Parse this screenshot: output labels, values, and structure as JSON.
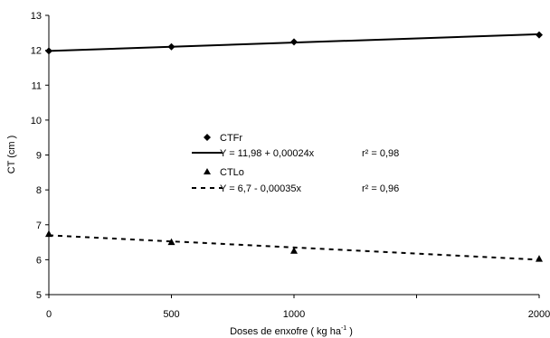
{
  "chart_data": {
    "type": "line",
    "title": "",
    "xlabel": "Doses de enxofre ( kg ha",
    "xlabel_sup": "-1",
    "xlabel_end": " )",
    "ylabel": "CT (cm )",
    "xlim": [
      0,
      2000
    ],
    "ylim": [
      5,
      13
    ],
    "x_ticks": [
      0,
      500,
      1000,
      2000
    ],
    "x_tick_labels": [
      "0",
      "500",
      "1000",
      "2000"
    ],
    "y_ticks": [
      5,
      6,
      7,
      8,
      9,
      10,
      11,
      12,
      13
    ],
    "y_tick_labels": [
      "5",
      "6",
      "7",
      "8",
      "9",
      "10",
      "11",
      "12",
      "13"
    ],
    "grid": false,
    "legend_position": "center-left",
    "series": [
      {
        "name": "CTFr",
        "marker": "diamond",
        "x": [
          0,
          500,
          1000,
          2000
        ],
        "y": [
          11.98,
          12.1,
          12.24,
          12.44
        ],
        "fit": {
          "label": "Y = 11,98 + 0,00024x",
          "r2_label": "r² = 0,98",
          "intercept": 11.98,
          "slope": 0.00024,
          "line_style": "solid"
        }
      },
      {
        "name": "CTLo",
        "marker": "triangle",
        "x": [
          0,
          500,
          1000,
          2000
        ],
        "y": [
          6.73,
          6.5,
          6.25,
          6.02
        ],
        "fit": {
          "label": "Y = 6,7 - 0,00035x",
          "r2_label": "r² = 0,96",
          "intercept": 6.7,
          "slope": -0.00035,
          "line_style": "dashed"
        }
      }
    ]
  }
}
